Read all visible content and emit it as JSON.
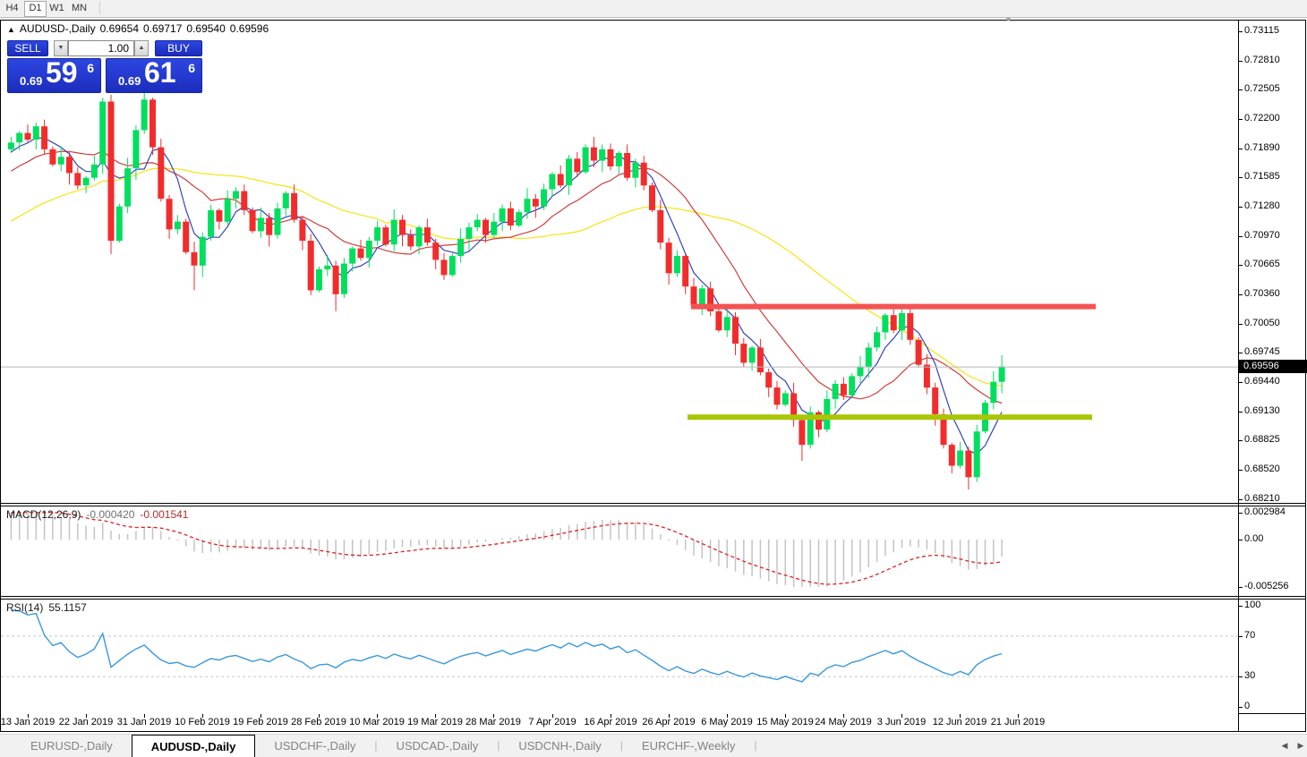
{
  "toolbar": {
    "timeframes": [
      "H4",
      "D1",
      "W1",
      "MN"
    ],
    "active_timeframe": "D1"
  },
  "chart_header": {
    "collapse_icon": "▲",
    "symbol": "AUDUSD-,Daily",
    "open": "0.69654",
    "high": "0.69717",
    "low": "0.69540",
    "close": "0.69596"
  },
  "trade_panel": {
    "sell_label": "SELL",
    "buy_label": "BUY",
    "volume": "1.00",
    "sell_price": {
      "prefix": "0.69",
      "big": "59",
      "sup": "6"
    },
    "buy_price": {
      "prefix": "0.69",
      "big": "61",
      "sup": "6"
    }
  },
  "price_axis": {
    "ticks": [
      "0.73115",
      "0.72810",
      "0.72505",
      "0.72200",
      "0.71890",
      "0.71585",
      "0.71280",
      "0.70970",
      "0.70665",
      "0.70360",
      "0.70050",
      "0.69745",
      "0.69440",
      "0.69130",
      "0.68825",
      "0.68520",
      "0.68210"
    ],
    "current": "0.69596"
  },
  "macd_panel": {
    "label": "MACD(12,26,9)",
    "value_main": "-0.000420",
    "value_signal": "-0.001541",
    "axis": [
      {
        "text": "0.002984",
        "value": 0.002984
      },
      {
        "text": "0.00",
        "value": 0
      },
      {
        "text": "-0.005256",
        "value": -0.005256
      }
    ]
  },
  "rsi_panel": {
    "label": "RSI(14)",
    "value": "55.1157",
    "axis": [
      {
        "text": "100",
        "value": 100
      },
      {
        "text": "70",
        "value": 70
      },
      {
        "text": "30",
        "value": 30
      },
      {
        "text": "0",
        "value": 0
      }
    ],
    "levels": [
      70,
      30
    ]
  },
  "date_axis": {
    "labels": [
      "13 Jan 2019",
      "22 Jan 2019",
      "31 Jan 2019",
      "10 Feb 2019",
      "19 Feb 2019",
      "28 Feb 2019",
      "10 Mar 2019",
      "19 Mar 2019",
      "28 Mar 2019",
      "7 Apr 2019",
      "16 Apr 2019",
      "26 Apr 2019",
      "6 May 2019",
      "15 May 2019",
      "24 May 2019",
      "3 Jun 2019",
      "12 Jun 2019",
      "21 Jun 2019"
    ]
  },
  "tabs": {
    "items": [
      {
        "label": "EURUSD-,Daily",
        "active": false
      },
      {
        "label": "AUDUSD-,Daily",
        "active": true
      },
      {
        "label": "USDCHF-,Daily",
        "active": false
      },
      {
        "label": "USDCAD-,Daily",
        "active": false
      },
      {
        "label": "USDCNH-,Daily",
        "active": false
      },
      {
        "label": "EURCHF-,Weekly",
        "active": false
      }
    ],
    "scroll_left_icon": "◀",
    "scroll_right_icon": "▶"
  },
  "colors": {
    "candle_up": "#00df5e",
    "candle_down": "#f22c2c",
    "ma_fast": "#3344bb",
    "ma_mid": "#d23c3c",
    "ma_slow": "#f5e410",
    "resistance": "#f45353",
    "support": "#a9c604",
    "current_price_line": "#b8b8b8",
    "macd_histogram": "#c4c4c4",
    "macd_signal": "#e02020",
    "rsi_line": "#3a98dd",
    "rsi_level": "#c8c8c8",
    "panel_blue": "#2236cf"
  },
  "chart_data": {
    "type": "candlestick",
    "symbol": "AUDUSD",
    "timeframe": "Daily",
    "title": "AUDUSD-,Daily",
    "ohlc_current": {
      "open": 0.69654,
      "high": 0.69717,
      "low": 0.6954,
      "close": 0.69596
    },
    "y_axis_range": [
      0.6821,
      0.73115
    ],
    "open_first": 0.7188,
    "close": [
      0.7195,
      0.7205,
      0.7198,
      0.7212,
      0.7188,
      0.7172,
      0.718,
      0.7163,
      0.715,
      0.7158,
      0.7172,
      0.7238,
      0.7092,
      0.7128,
      0.7168,
      0.7208,
      0.724,
      0.719,
      0.7136,
      0.7104,
      0.7112,
      0.708,
      0.7066,
      0.7096,
      0.7124,
      0.7112,
      0.7136,
      0.7144,
      0.7124,
      0.7102,
      0.7116,
      0.7098,
      0.7126,
      0.7142,
      0.7114,
      0.7092,
      0.704,
      0.7062,
      0.7066,
      0.7036,
      0.7068,
      0.7084,
      0.7074,
      0.7092,
      0.7106,
      0.7088,
      0.7114,
      0.7098,
      0.7086,
      0.7106,
      0.709,
      0.7072,
      0.7056,
      0.7076,
      0.7094,
      0.7106,
      0.7114,
      0.7098,
      0.7112,
      0.7126,
      0.7108,
      0.7122,
      0.7136,
      0.7128,
      0.7146,
      0.7162,
      0.715,
      0.7178,
      0.7164,
      0.719,
      0.7176,
      0.7188,
      0.717,
      0.7184,
      0.7158,
      0.7174,
      0.715,
      0.7124,
      0.709,
      0.7058,
      0.7076,
      0.7044,
      0.7024,
      0.7042,
      0.7018,
      0.6998,
      0.7012,
      0.6984,
      0.6964,
      0.698,
      0.6954,
      0.6938,
      0.692,
      0.6932,
      0.6904,
      0.6878,
      0.6912,
      0.6894,
      0.6926,
      0.6942,
      0.693,
      0.695,
      0.696,
      0.698,
      0.6996,
      0.7014,
      0.6998,
      0.7016,
      0.6988,
      0.6962,
      0.6938,
      0.691,
      0.6878,
      0.6856,
      0.6872,
      0.6844,
      0.6892,
      0.6922,
      0.6944,
      0.696
    ],
    "wick_high": [
      0.0006,
      0.0002,
      0.0009,
      0.0004,
      0.0007,
      0.0003,
      0.0011,
      0.0005
    ],
    "wick_low": [
      0.0004,
      0.0008,
      0.0003,
      0.001,
      0.0005,
      0.0002,
      0.0007,
      0.0012
    ],
    "wick_overrides": {
      "12": {
        "low": 0.7078
      },
      "16": {
        "high": 0.7253
      },
      "22": {
        "low": 0.704
      },
      "39": {
        "low": 0.7018
      },
      "95": {
        "low": 0.6861
      },
      "107": {
        "high": 0.7024
      },
      "115": {
        "low": 0.6831
      },
      "119": {
        "high": 0.6972
      }
    },
    "indicators": {
      "ma_fast_period": 5,
      "ma_mid_period": 13,
      "ma_slow_period": 34,
      "macd": [
        12,
        26,
        9
      ],
      "macd_display": [
        -0.00042,
        -0.001541
      ],
      "rsi_period": 14,
      "rsi_display": 55.1157
    },
    "levels": {
      "resistance": 0.7023,
      "support": 0.6907,
      "current_price": 0.69596
    },
    "macd_range": [
      -0.005256,
      0.002984
    ],
    "rsi_range": [
      0,
      100
    ],
    "rsi_levels": [
      70,
      30
    ]
  }
}
